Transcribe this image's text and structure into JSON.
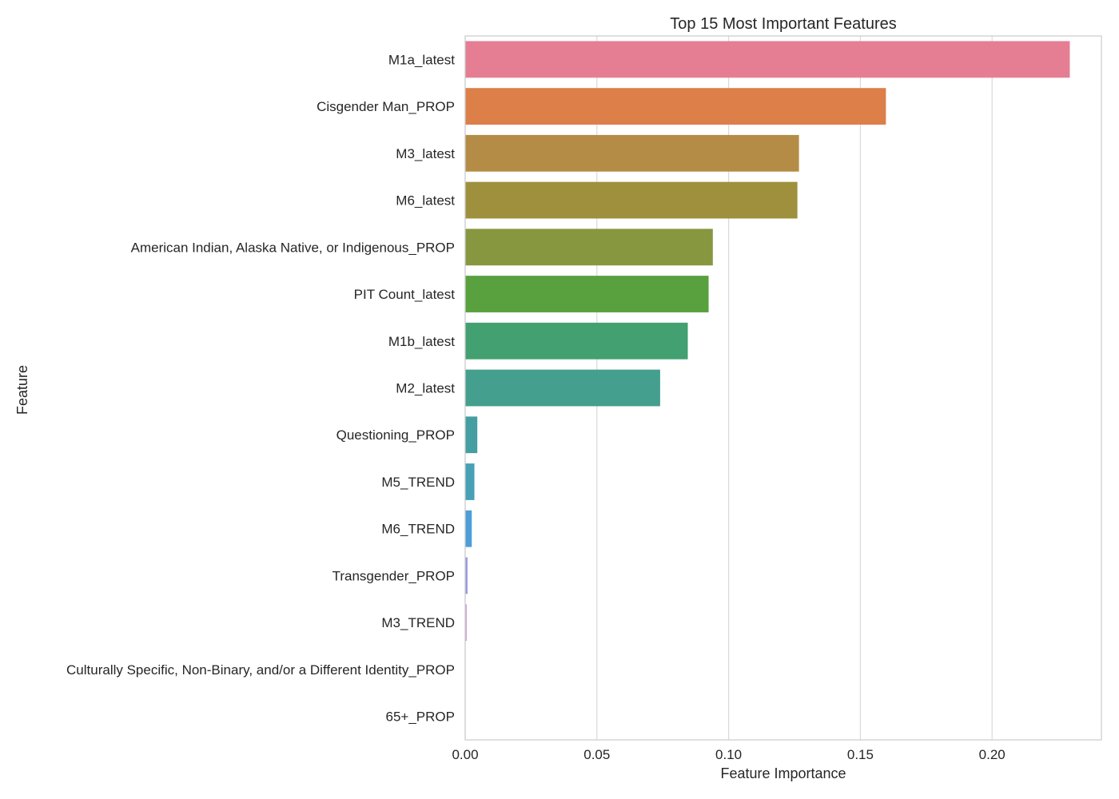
{
  "chart_data": {
    "type": "bar",
    "orientation": "horizontal",
    "title": "Top 15 Most Important Features",
    "xlabel": "Feature Importance",
    "ylabel": "Feature",
    "xlim": [
      0,
      0.2415
    ],
    "xticks": [
      "0.00",
      "0.05",
      "0.10",
      "0.15",
      "0.20"
    ],
    "grid": "vertical",
    "categories": [
      "M1a_latest",
      "Cisgender Man_PROP",
      "M3_latest",
      "M6_latest",
      "American Indian, Alaska Native, or Indigenous_PROP",
      "PIT Count_latest",
      "M1b_latest",
      "M2_latest",
      "Questioning_PROP",
      "M5_TREND",
      "M6_TREND",
      "Transgender_PROP",
      "M3_TREND",
      "Culturally Specific, Non-Binary, and/or a Different Identity_PROP",
      "65+_PROP"
    ],
    "values": [
      0.2295,
      0.1597,
      0.1267,
      0.1261,
      0.094,
      0.0924,
      0.0845,
      0.074,
      0.0046,
      0.0035,
      0.0025,
      0.0009,
      0.0006,
      0.0001,
      0.0001
    ],
    "colors": [
      "#e57e93",
      "#dc7f49",
      "#b48c45",
      "#9e903d",
      "#87973f",
      "#58a13e",
      "#42a071",
      "#449f8e",
      "#459ea2",
      "#47a0b5",
      "#4c9ed8",
      "#9c9ae3",
      "#d3a1d9",
      "#e5a0c7",
      "#e8a0b8"
    ]
  }
}
